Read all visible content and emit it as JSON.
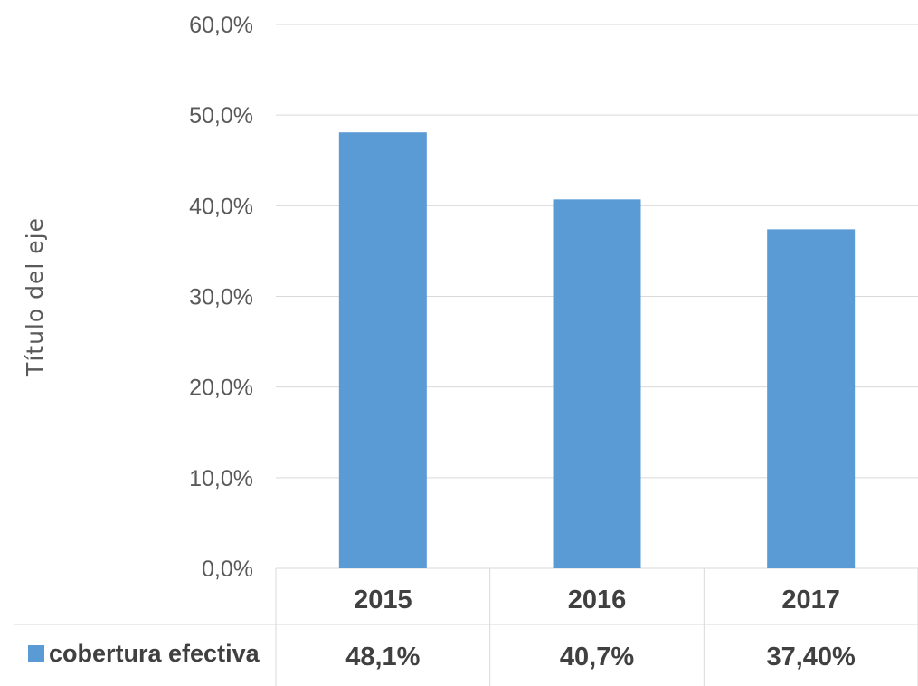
{
  "chart_data": {
    "type": "bar",
    "ylabel": "Título del eje",
    "categories": [
      "2015",
      "2016",
      "2017"
    ],
    "series": [
      {
        "name": "cobertura efectiva",
        "values": [
          48.1,
          40.7,
          37.4
        ],
        "labels": [
          "48,1%",
          "40,7%",
          "37,40%"
        ],
        "color": "#5b9bd5"
      }
    ],
    "ylim": [
      0,
      60
    ],
    "yticks": [
      {
        "value": 0,
        "label": "0,0%"
      },
      {
        "value": 10,
        "label": "10,0%"
      },
      {
        "value": 20,
        "label": "20,0%"
      },
      {
        "value": 30,
        "label": "30,0%"
      },
      {
        "value": 40,
        "label": "40,0%"
      },
      {
        "value": 50,
        "label": "50,0%"
      },
      {
        "value": 60,
        "label": "60,0%"
      }
    ],
    "grid": true,
    "legend": "data-table-left"
  }
}
